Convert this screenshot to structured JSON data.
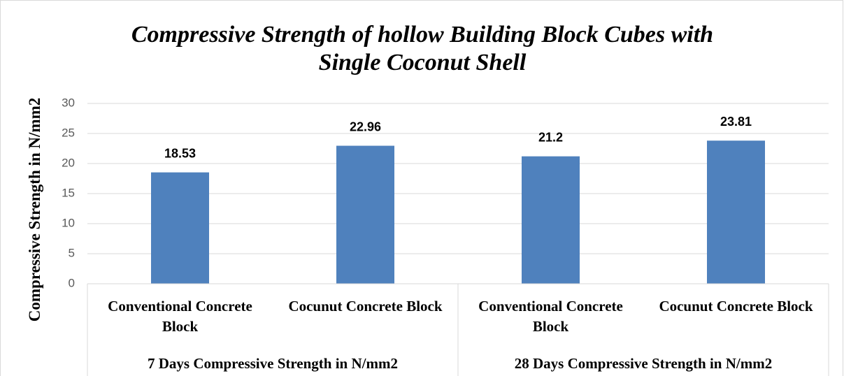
{
  "chart_data": {
    "type": "bar",
    "title": "Compressive Strength of hollow Building Block Cubes with Single Coconut Shell",
    "y_axis_label": "Compressive Strength in N/mm2",
    "categories": [
      "Conventional Concrete Block",
      "Cocunut Concrete Block",
      "Conventional Concrete Block",
      "Cocunut Concrete Block"
    ],
    "groups": [
      "7 Days Compressive Strength in N/mm2",
      "28 Days Compressive Strength in N/mm2"
    ],
    "values": [
      18.53,
      22.96,
      21.2,
      23.81
    ],
    "color": "#4f81bd",
    "ylim": [
      0,
      30
    ],
    "yticks": [
      0,
      5,
      10,
      15,
      20,
      25,
      30
    ],
    "grid": true
  }
}
